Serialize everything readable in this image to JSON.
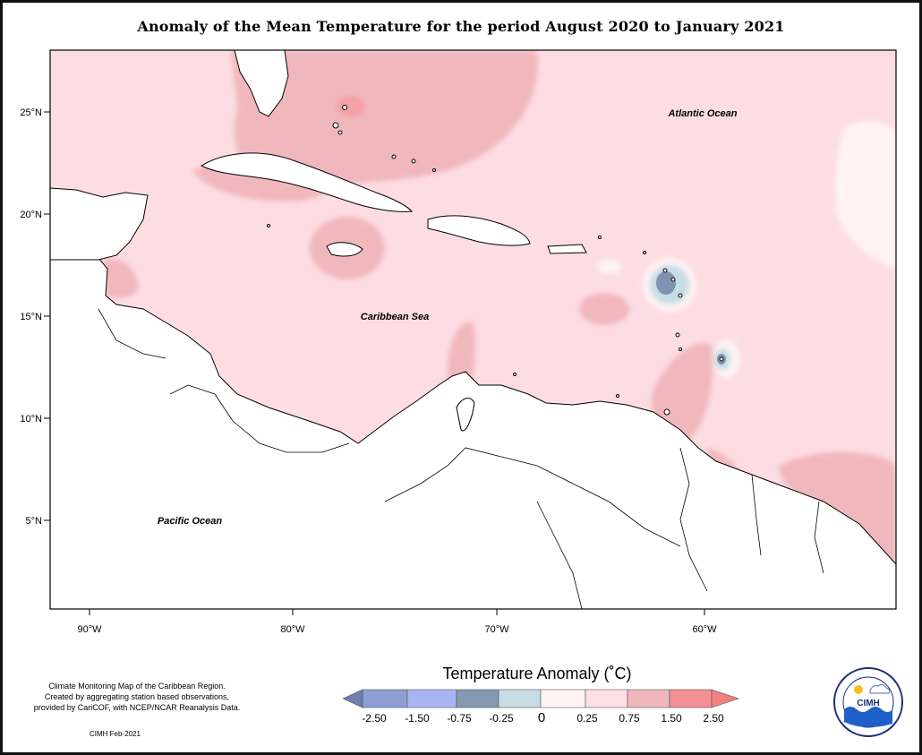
{
  "title": "Anomaly of the Mean Temperature for the period August 2020 to January 2021",
  "map": {
    "ocean_labels": {
      "atlantic": "Atlantic Ocean",
      "caribbean": "Caribbean Sea",
      "pacific": "Pacific Ocean"
    },
    "lat_ticks": [
      "25°N",
      "20°N",
      "15°N",
      "10°N",
      "5°N"
    ],
    "lon_ticks": [
      "90°W",
      "80°W",
      "70°W",
      "60°W"
    ],
    "colors": {
      "land": "#ffffff",
      "base_anomaly": "#fddde2",
      "warm_anomaly": "#f0b8bd",
      "hot_anomaly": "#f59fa6",
      "neutral": "#fff3f4",
      "cool": "#c6dde6",
      "cold": "#7f93b0"
    }
  },
  "legend": {
    "title": "Temperature Anomaly (˚C)",
    "ticks": [
      "-2.50",
      "-1.50",
      "-0.75",
      "-0.25",
      "0",
      "0.25",
      "0.75",
      "1.50",
      "2.50"
    ],
    "colors": [
      "#6f7fb3",
      "#8e9fd6",
      "#a8b5f2",
      "#8499b2",
      "#c7dde6",
      "#fff4f4",
      "#fde0e3",
      "#eeb7bc",
      "#f58f96",
      "#f37f82"
    ]
  },
  "notes": {
    "line1": "Climate Monitoring Map of the Caribbean Region.",
    "line2": "Created by aggregating station based observations,",
    "line3": "provided by CariCOF, with NCEP/NCAR Reanalysis Data.",
    "credit": "CIMH Feb-2021"
  },
  "logo": {
    "text": "CIMH"
  }
}
